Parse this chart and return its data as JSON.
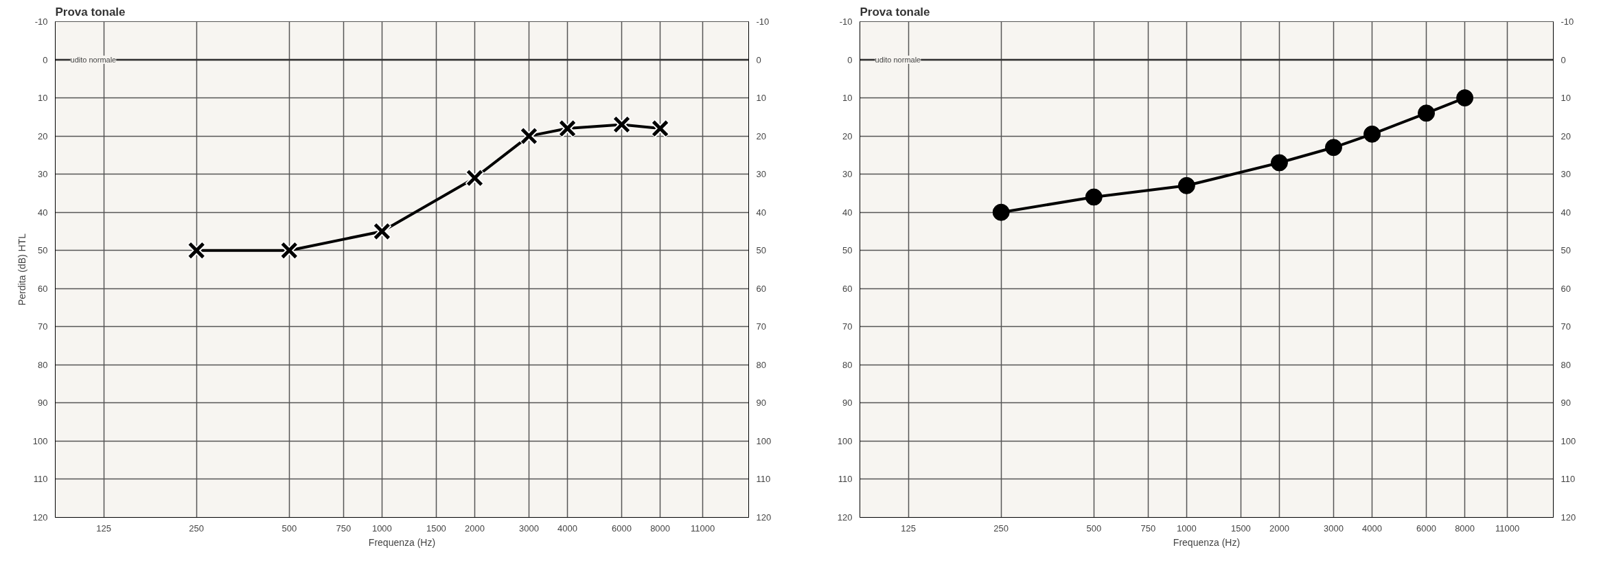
{
  "chart_data": [
    {
      "type": "line",
      "title": "Prova tonale",
      "xlabel": "Frequenza (Hz)",
      "ylabel": "Perdita (dB) HTL",
      "x": [
        250,
        500,
        1000,
        2000,
        3000,
        4000,
        6000,
        8000
      ],
      "series": [
        {
          "color": "#000000",
          "values": [
            50,
            50,
            45,
            31,
            20,
            18,
            17,
            18
          ]
        }
      ],
      "marker": "cross",
      "log": "x",
      "xlim": [
        87,
        15500
      ],
      "xticks": [
        125,
        250,
        500,
        750,
        1000,
        1500,
        2000,
        3000,
        4000,
        6000,
        8000,
        11000
      ],
      "ylim": [
        120,
        -10
      ],
      "yticks": [
        -10,
        0,
        10,
        20,
        30,
        40,
        50,
        60,
        70,
        80,
        90,
        100,
        110,
        120
      ],
      "y2lim": [
        120,
        -10
      ],
      "y2ticks": [
        -10,
        0,
        10,
        20,
        30,
        40,
        50,
        60,
        70,
        80,
        90,
        100,
        110,
        120
      ],
      "grid": true,
      "ref_lines": [
        {
          "axis": "y",
          "value": 0,
          "label": "udito normale"
        }
      ]
    },
    {
      "type": "line",
      "title": "Prova tonale",
      "xlabel": "Frequenza (Hz)",
      "x": [
        250,
        500,
        1000,
        2000,
        3000,
        4000,
        6000,
        8000
      ],
      "series": [
        {
          "color": "#000000",
          "values": [
            40,
            36,
            33,
            27,
            23,
            19.5,
            14,
            10
          ]
        }
      ],
      "marker": "circle",
      "log": "x",
      "xlim": [
        87,
        15500
      ],
      "xticks": [
        125,
        250,
        500,
        750,
        1000,
        1500,
        2000,
        3000,
        4000,
        6000,
        8000,
        11000
      ],
      "ylim": [
        120,
        -10
      ],
      "yticks": [
        -10,
        0,
        10,
        20,
        30,
        40,
        50,
        60,
        70,
        80,
        90,
        100,
        110,
        120
      ],
      "y2lim": [
        120,
        -10
      ],
      "y2ticks": [
        -10,
        0,
        10,
        20,
        30,
        40,
        50,
        60,
        70,
        80,
        90,
        100,
        110,
        120
      ],
      "grid": true,
      "ref_lines": [
        {
          "axis": "y",
          "value": 0,
          "label": "udito normale"
        }
      ]
    }
  ]
}
